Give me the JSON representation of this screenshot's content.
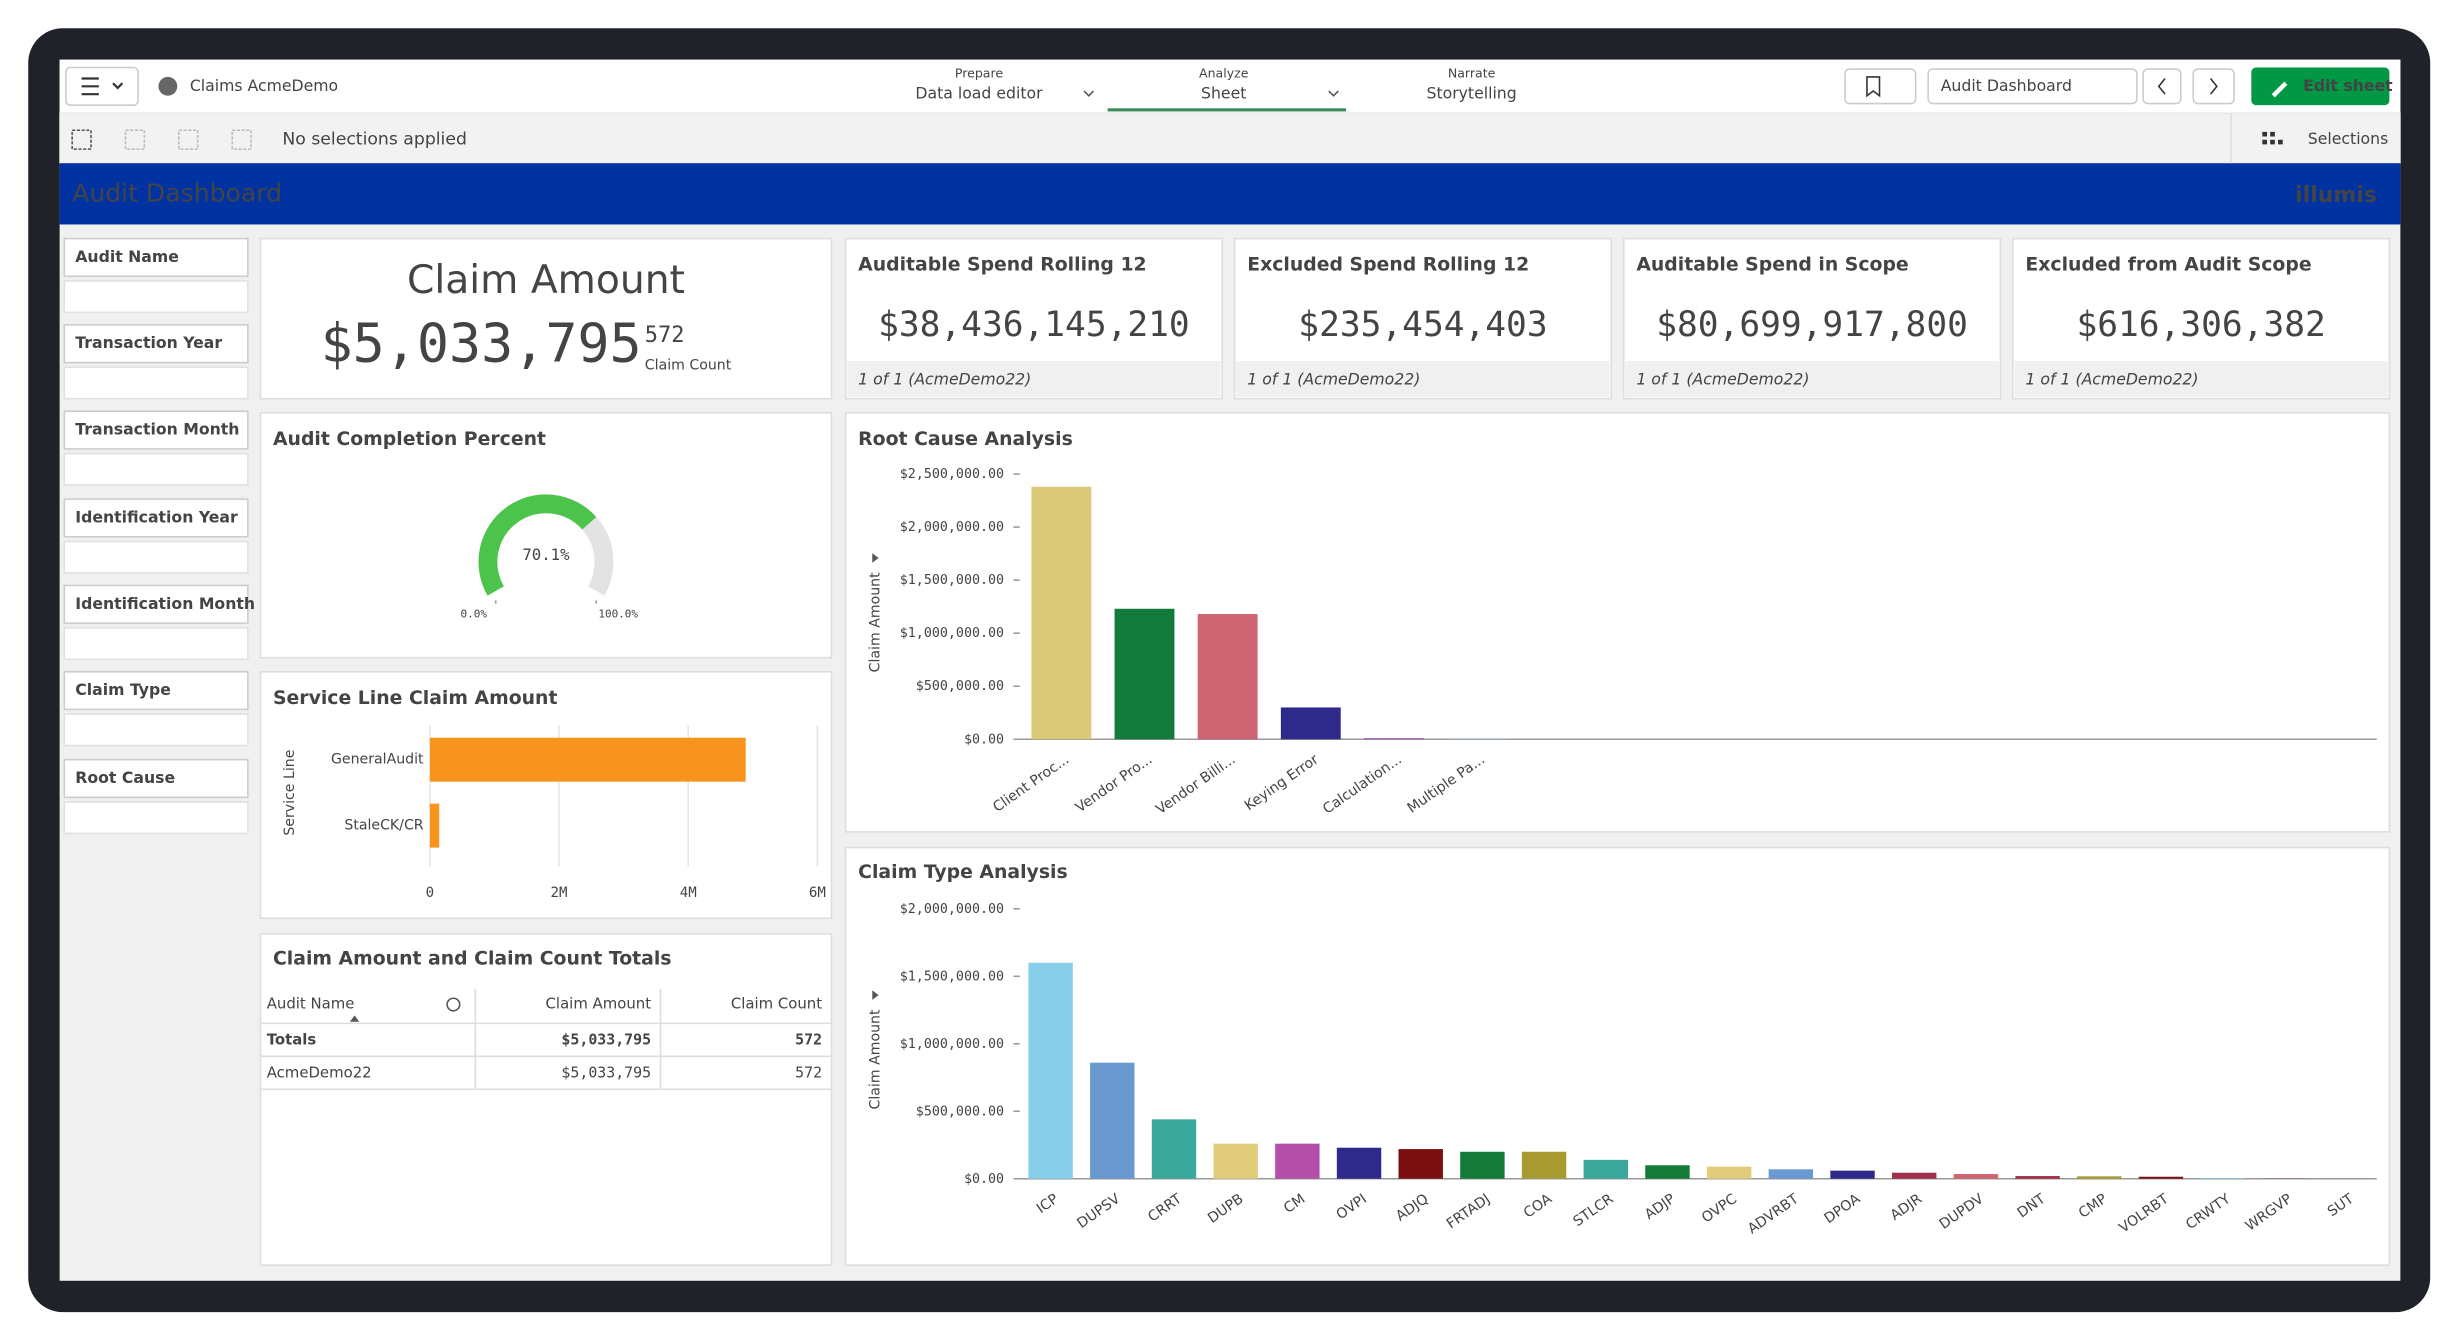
{
  "header": {
    "app_name": "Claims AcmeDemo",
    "nav": [
      {
        "label": "Prepare",
        "value": "Data load editor"
      },
      {
        "label": "Analyze",
        "value": "Sheet"
      },
      {
        "label": "Narrate",
        "value": "Storytelling"
      }
    ],
    "sheet": "Audit Dashboard",
    "edit_button": "Edit sheet"
  },
  "selections": {
    "status": "No selections applied",
    "button": "Selections"
  },
  "banner": {
    "title": "Audit Dashboard",
    "logo": "illumis"
  },
  "filters": [
    "Audit Name",
    "Transaction Year",
    "Transaction Month",
    "Identification Year",
    "Identification Month",
    "Claim Type",
    "Root Cause"
  ],
  "claim_amount": {
    "title": "Claim Amount",
    "value": "$5,033,795",
    "count": "572",
    "count_label": "Claim Count"
  },
  "kpis": [
    {
      "title": "Auditable Spend Rolling 12",
      "value": "$38,436,145,210",
      "footer": "1 of 1 (AcmeDemo22)"
    },
    {
      "title": "Excluded Spend Rolling 12",
      "value": "$235,454,403",
      "footer": "1 of 1 (AcmeDemo22)"
    },
    {
      "title": "Auditable Spend in Scope",
      "value": "$80,699,917,800",
      "footer": "1 of 1 (AcmeDemo22)"
    },
    {
      "title": "Excluded from Audit Scope",
      "value": "$616,306,382",
      "footer": "1 of 1 (AcmeDemo22)"
    }
  ],
  "table": {
    "title": "Claim Amount and Claim Count Totals",
    "columns": [
      "Audit Name",
      "Claim Amount",
      "Claim Count"
    ],
    "rows": [
      [
        "Totals",
        "$5,033,795",
        "572"
      ],
      [
        "AcmeDemo22",
        "$5,033,795",
        "572"
      ]
    ]
  },
  "chart_data": [
    {
      "type": "gauge",
      "title": "Audit Completion Percent",
      "value": 70.1,
      "value_label": "70.1%",
      "ylim": [
        0,
        100
      ],
      "yticks": [
        {
          "value": 0,
          "label": "0.0%"
        },
        {
          "value": 100,
          "label": "100.0%"
        }
      ],
      "color": "#4cc34b"
    },
    {
      "type": "hbar",
      "title": "Service Line Claim Amount",
      "y_label": "Service Line",
      "categories": [
        "GeneralAudit",
        "StaleCK/CR"
      ],
      "values": [
        4890000,
        145000
      ],
      "color": "#f7941d",
      "xlim": [
        0,
        6000000
      ],
      "xticks": [
        0,
        {
          "value": 2000000,
          "label": "2M"
        },
        {
          "value": 4000000,
          "label": "4M"
        },
        {
          "value": 6000000,
          "label": "6M"
        }
      ]
    },
    {
      "type": "bar",
      "title": "Root Cause Analysis",
      "y_label": "Claim Amount",
      "categories": [
        "Client Proc...",
        "Vendor Pro...",
        "Vendor Billi...",
        "Keying Error",
        "Calculation...",
        "Multiple Pa..."
      ],
      "values": [
        2380000,
        1230000,
        1180000,
        300000,
        10000,
        3000
      ],
      "colors": [
        "#dcc97a",
        "#127a3a",
        "#cf6472",
        "#2e2a8c",
        "#8a4fa0",
        "#9ec9e8"
      ],
      "ylim": [
        0,
        2500000
      ],
      "yticks": [
        {
          "value": 0,
          "label": "$0.00"
        },
        {
          "value": 500000,
          "label": "$500,000.00"
        },
        {
          "value": 1000000,
          "label": "$1,000,000.00"
        },
        {
          "value": 1500000,
          "label": "$1,500,000.00"
        },
        {
          "value": 2000000,
          "label": "$2,000,000.00"
        },
        {
          "value": 2500000,
          "label": "$2,500,000.00"
        }
      ]
    },
    {
      "type": "bar",
      "title": "Claim Type Analysis",
      "y_label": "Claim Amount",
      "categories": [
        "ICP",
        "DUPSV",
        "CRRT",
        "DUPB",
        "CM",
        "OVPI",
        "ADJQ",
        "FRTADJ",
        "COA",
        "STLCR",
        "ADJP",
        "OVPC",
        "ADVRBT",
        "DPOA",
        "ADJR",
        "DUPDV",
        "DNT",
        "CMP",
        "VOLRBT",
        "CRWTY",
        "WRGVP",
        "SUT"
      ],
      "values": [
        1600000,
        860000,
        440000,
        260000,
        260000,
        230000,
        220000,
        200000,
        200000,
        140000,
        100000,
        90000,
        70000,
        60000,
        45000,
        35000,
        20000,
        18000,
        15000,
        5000,
        2000,
        1000
      ],
      "colors": [
        "#87ceeb",
        "#6a99d0",
        "#3aa89a",
        "#e0cc7a",
        "#b34fa8",
        "#2e2a8c",
        "#7a1010",
        "#137a37",
        "#a69a30",
        "#3aa89a",
        "#137a37",
        "#e0cc7a",
        "#6a99d0",
        "#2e2a8c",
        "#a0304a",
        "#cf6472",
        "#a0304a",
        "#a69a30",
        "#7a1010",
        "#87ceeb",
        "#b34fa8",
        "#6a99d0"
      ],
      "ylim": [
        0,
        2000000
      ],
      "yticks": [
        {
          "value": 0,
          "label": "$0.00"
        },
        {
          "value": 500000,
          "label": "$500,000.00"
        },
        {
          "value": 1000000,
          "label": "$1,000,000.00"
        },
        {
          "value": 1500000,
          "label": "$1,500,000.00"
        },
        {
          "value": 2000000,
          "label": "$2,000,000.00"
        }
      ]
    }
  ]
}
